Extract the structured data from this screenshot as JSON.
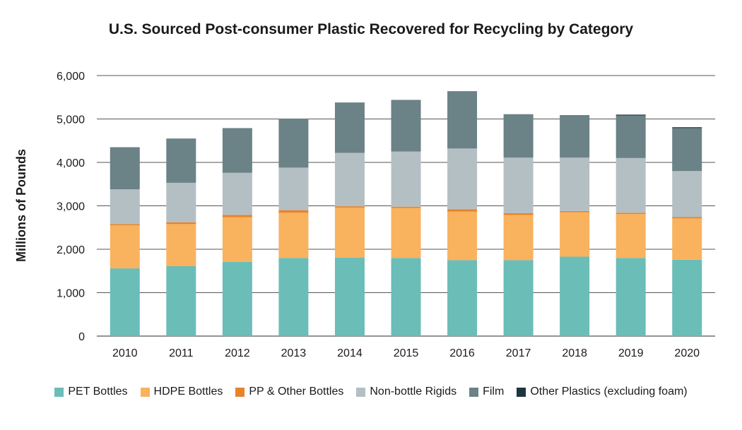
{
  "chart_data": {
    "type": "bar",
    "stacked": true,
    "title": "U.S. Sourced Post-consumer Plastic Recovered for Recycling by Category",
    "xlabel": "",
    "ylabel": "Millions of Pounds",
    "ylim": [
      0,
      6000
    ],
    "yticks": [
      0,
      1000,
      2000,
      3000,
      4000,
      5000,
      6000
    ],
    "ytick_labels": [
      "0",
      "1,000",
      "2,000",
      "3,000",
      "4,000",
      "5,000",
      "6,000"
    ],
    "grid": true,
    "legend_position": "bottom",
    "categories": [
      "2010",
      "2011",
      "2012",
      "2013",
      "2014",
      "2015",
      "2016",
      "2017",
      "2018",
      "2019",
      "2020"
    ],
    "series": [
      {
        "name": "PET Bottles",
        "color": "#6bbdb8",
        "values": [
          1560,
          1610,
          1710,
          1800,
          1810,
          1800,
          1750,
          1750,
          1830,
          1800,
          1760
        ]
      },
      {
        "name": "HDPE Bottles",
        "color": "#f9b25e",
        "values": [
          990,
          970,
          1030,
          1040,
          1150,
          1150,
          1120,
          1040,
          1020,
          1010,
          950
        ]
      },
      {
        "name": "PP & Other Bottles",
        "color": "#e8832a",
        "values": [
          30,
          40,
          50,
          60,
          30,
          30,
          50,
          40,
          30,
          30,
          30
        ]
      },
      {
        "name": "Non-bottle Rigids",
        "color": "#b4bfc4",
        "values": [
          800,
          910,
          970,
          980,
          1230,
          1270,
          1400,
          1280,
          1230,
          1260,
          1060
        ]
      },
      {
        "name": "Film",
        "color": "#6b8287",
        "values": [
          970,
          1020,
          1030,
          1130,
          1160,
          1190,
          1320,
          1000,
          980,
          980,
          990
        ]
      },
      {
        "name": "Other Plastics (excluding foam)",
        "color": "#1c3640",
        "values": [
          0,
          0,
          0,
          0,
          0,
          0,
          0,
          0,
          0,
          20,
          20
        ]
      }
    ]
  }
}
